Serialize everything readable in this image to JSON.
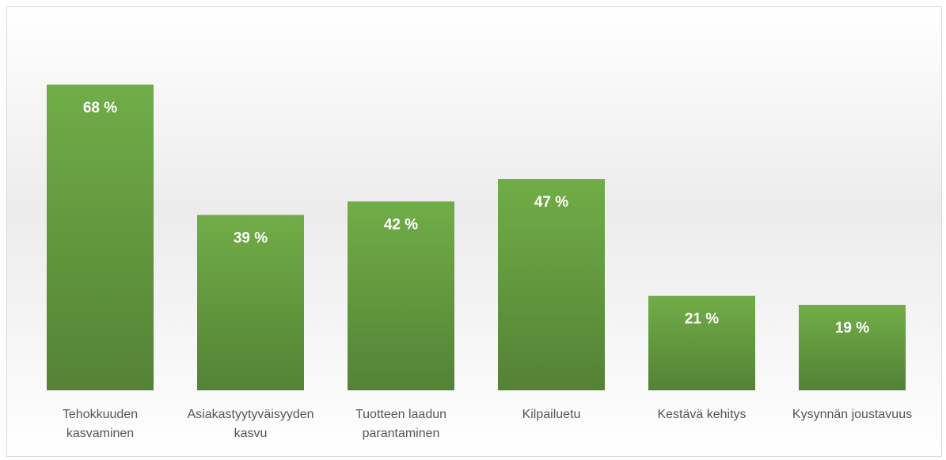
{
  "chart_data": {
    "type": "bar",
    "categories": [
      "Tehokkuuden kasvaminen",
      "Asiakastyytyväisyyden kasvu",
      "Tuotteen laadun parantaminen",
      "Kilpailuetu",
      "Kestävä kehitys",
      "Kysynnän joustavuus"
    ],
    "values": [
      68,
      39,
      42,
      47,
      21,
      19
    ],
    "value_labels": [
      "68 %",
      "39 %",
      "42 %",
      "47 %",
      "21 %",
      "19 %"
    ],
    "color": "#70ad47"
  }
}
